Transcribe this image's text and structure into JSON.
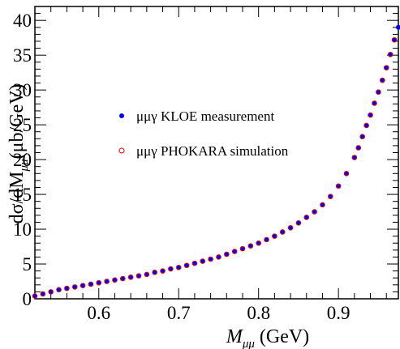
{
  "chart_data": {
    "type": "scatter",
    "xlabel_main": "M",
    "xlabel_sub": "μμ",
    "xlabel_unit": " (GeV)",
    "ylabel_prefix": "dσ/dM",
    "ylabel_sub": "μμ",
    "ylabel_unit": "(μb/GeV)",
    "xlim": [
      0.52,
      0.975
    ],
    "ylim": [
      0,
      42
    ],
    "x_ticks": [
      0.6,
      0.7,
      0.8,
      0.9
    ],
    "x_tick_labels": [
      "0.6",
      "0.7",
      "0.8",
      "0.9"
    ],
    "y_ticks": [
      0,
      5,
      10,
      15,
      20,
      25,
      30,
      35,
      40
    ],
    "y_tick_labels": [
      "0",
      "5",
      "10",
      "15",
      "20",
      "25",
      "30",
      "35",
      "40"
    ],
    "grid": false,
    "legend_position": "upper-left",
    "series": [
      {
        "name": "μμγ KLOE measurement",
        "marker": "filled-circle",
        "color": "#0000ee",
        "x": [
          0.52,
          0.53,
          0.54,
          0.55,
          0.56,
          0.57,
          0.58,
          0.59,
          0.6,
          0.61,
          0.62,
          0.63,
          0.64,
          0.65,
          0.66,
          0.67,
          0.68,
          0.69,
          0.7,
          0.71,
          0.72,
          0.73,
          0.74,
          0.75,
          0.76,
          0.77,
          0.78,
          0.79,
          0.8,
          0.81,
          0.82,
          0.83,
          0.84,
          0.85,
          0.86,
          0.87,
          0.88,
          0.89,
          0.9,
          0.91,
          0.92,
          0.925,
          0.93,
          0.935,
          0.94,
          0.945,
          0.95,
          0.955,
          0.96,
          0.965,
          0.97,
          0.975
        ],
        "values": [
          0.4,
          0.7,
          1.0,
          1.3,
          1.5,
          1.7,
          1.9,
          2.1,
          2.3,
          2.5,
          2.7,
          2.9,
          3.1,
          3.3,
          3.5,
          3.8,
          4.0,
          4.3,
          4.5,
          4.8,
          5.1,
          5.4,
          5.7,
          6.0,
          6.4,
          6.8,
          7.2,
          7.6,
          8.0,
          8.5,
          9.0,
          9.6,
          10.2,
          10.9,
          11.7,
          12.5,
          13.5,
          14.7,
          16.2,
          18.0,
          20.3,
          21.7,
          23.3,
          24.9,
          26.4,
          28.1,
          29.7,
          31.4,
          33.2,
          35.1,
          37.2,
          39.0
        ]
      },
      {
        "name": "μμγ PHOKARA simulation",
        "marker": "open-circle",
        "color": "#ee0000",
        "x": [
          0.52,
          0.53,
          0.54,
          0.55,
          0.56,
          0.57,
          0.58,
          0.59,
          0.6,
          0.61,
          0.62,
          0.63,
          0.64,
          0.65,
          0.66,
          0.67,
          0.68,
          0.69,
          0.7,
          0.71,
          0.72,
          0.73,
          0.74,
          0.75,
          0.76,
          0.77,
          0.78,
          0.79,
          0.8,
          0.81,
          0.82,
          0.83,
          0.84,
          0.85,
          0.86,
          0.87,
          0.88,
          0.89,
          0.9,
          0.91,
          0.92,
          0.925,
          0.93,
          0.935,
          0.94,
          0.945,
          0.95,
          0.955,
          0.96,
          0.965,
          0.97
        ],
        "values": [
          0.4,
          0.7,
          1.0,
          1.3,
          1.5,
          1.7,
          1.9,
          2.1,
          2.3,
          2.5,
          2.7,
          2.9,
          3.1,
          3.3,
          3.5,
          3.8,
          4.0,
          4.3,
          4.5,
          4.8,
          5.1,
          5.4,
          5.7,
          6.0,
          6.4,
          6.8,
          7.2,
          7.6,
          8.0,
          8.5,
          9.0,
          9.6,
          10.2,
          10.9,
          11.7,
          12.5,
          13.5,
          14.7,
          16.2,
          18.0,
          20.3,
          21.7,
          23.3,
          24.9,
          26.4,
          28.1,
          29.7,
          31.4,
          33.2,
          35.1,
          37.2
        ]
      }
    ]
  }
}
